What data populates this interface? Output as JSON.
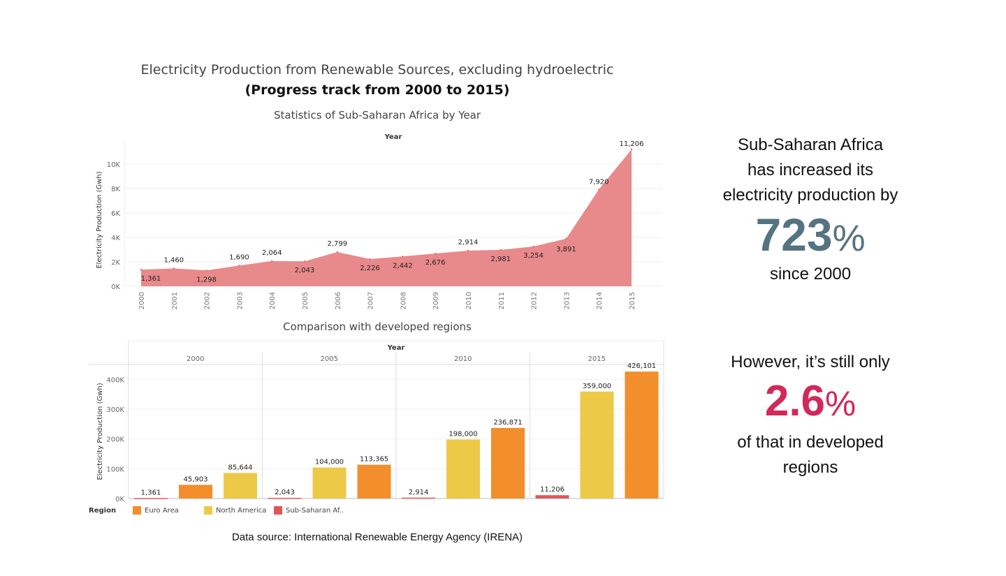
{
  "header": {
    "title": "Electricity Production from Renewable Sources, excluding hydroelectric",
    "subtitle": "(Progress track from 2000 to 2015)"
  },
  "area_chart": {
    "title": "Statistics of Sub-Saharan Africa by Year",
    "x_header": "Year",
    "ylabel": "Electricity Production (Gwh)",
    "color": "#e8898b"
  },
  "bar_chart": {
    "title": "Comparison with developed regions",
    "x_header": "Year",
    "ylabel": "Electricity Production (Gwh)",
    "legend_title": "Region"
  },
  "chart_data": [
    {
      "type": "area",
      "title": "Statistics of Sub-Saharan Africa by Year",
      "xlabel": "Year",
      "ylabel": "Electricity Production (Gwh)",
      "x": [
        "2000",
        "2001",
        "2002",
        "2003",
        "2004",
        "2005",
        "2006",
        "2007",
        "2008",
        "2009",
        "2010",
        "2011",
        "2012",
        "2013",
        "2014",
        "2015"
      ],
      "values": [
        1361,
        1460,
        1298,
        1690,
        2064,
        2043,
        2799,
        2226,
        2442,
        2676,
        2914,
        2981,
        3254,
        3891,
        7920,
        11206
      ],
      "labels": [
        "1,361",
        "1,460",
        "1,298",
        "1,690",
        "2,064",
        "2,043",
        "2,799",
        "2,226",
        "2,442",
        "2,676",
        "2,914",
        "2,981",
        "3,254",
        "3,891",
        "7,920",
        "11,206"
      ],
      "yticks": [
        "0K",
        "2K",
        "4K",
        "6K",
        "8K",
        "10K"
      ],
      "ytick_values": [
        0,
        2000,
        4000,
        6000,
        8000,
        10000
      ],
      "ylim": [
        0,
        12000
      ],
      "grid": true
    },
    {
      "type": "bar",
      "title": "Comparison with developed regions",
      "xlabel": "Year",
      "ylabel": "Electricity Production (Gwh)",
      "categories": [
        "2000",
        "2005",
        "2010",
        "2015"
      ],
      "series": [
        {
          "name": "Sub-Saharan Af..",
          "color": "#e15759",
          "values": [
            1361,
            2043,
            2914,
            11206
          ],
          "labels": [
            "1,361",
            "2,043",
            "2,914",
            "11,206"
          ]
        },
        {
          "name": "Euro Area",
          "color": "#f28e2b",
          "values": [
            45903,
            113365,
            236871,
            426101
          ],
          "labels": [
            "45,903",
            "113,365",
            "236,871",
            "426,101"
          ]
        },
        {
          "name": "North America",
          "color": "#edc948",
          "values": [
            85644,
            104000,
            198000,
            359000
          ],
          "labels": [
            "85,644",
            "104,000",
            "198,000",
            "359,000"
          ]
        }
      ],
      "group_order": [
        [
          "Sub-Saharan Af..",
          "Euro Area",
          "North America"
        ],
        [
          "Sub-Saharan Af..",
          "North America",
          "Euro Area"
        ],
        [
          "Sub-Saharan Af..",
          "North America",
          "Euro Area"
        ],
        [
          "Sub-Saharan Af..",
          "North America",
          "Euro Area"
        ]
      ],
      "legend": [
        "Euro Area",
        "North America",
        "Sub-Saharan Af.."
      ],
      "yticks": [
        "0K",
        "100K",
        "200K",
        "300K",
        "400K"
      ],
      "ytick_values": [
        0,
        100000,
        200000,
        300000,
        400000
      ],
      "ylim": [
        0,
        450000
      ],
      "legend_position": "bottom-left"
    }
  ],
  "insights": {
    "line1": "Sub-Saharan Africa",
    "line2": "has increased its",
    "line3": "electricity production by",
    "big_value": "723",
    "big_unit": "%",
    "since": "since 2000",
    "b_line1": "However, it’s still only",
    "b_big_value": "2.6",
    "b_big_unit": "%",
    "b_line2": "of that in developed",
    "b_line3": "regions",
    "color_a": "#557380",
    "color_b": "#d2285a"
  },
  "footer": {
    "source": "Data source: International Renewable Energy Agency (IRENA)"
  }
}
